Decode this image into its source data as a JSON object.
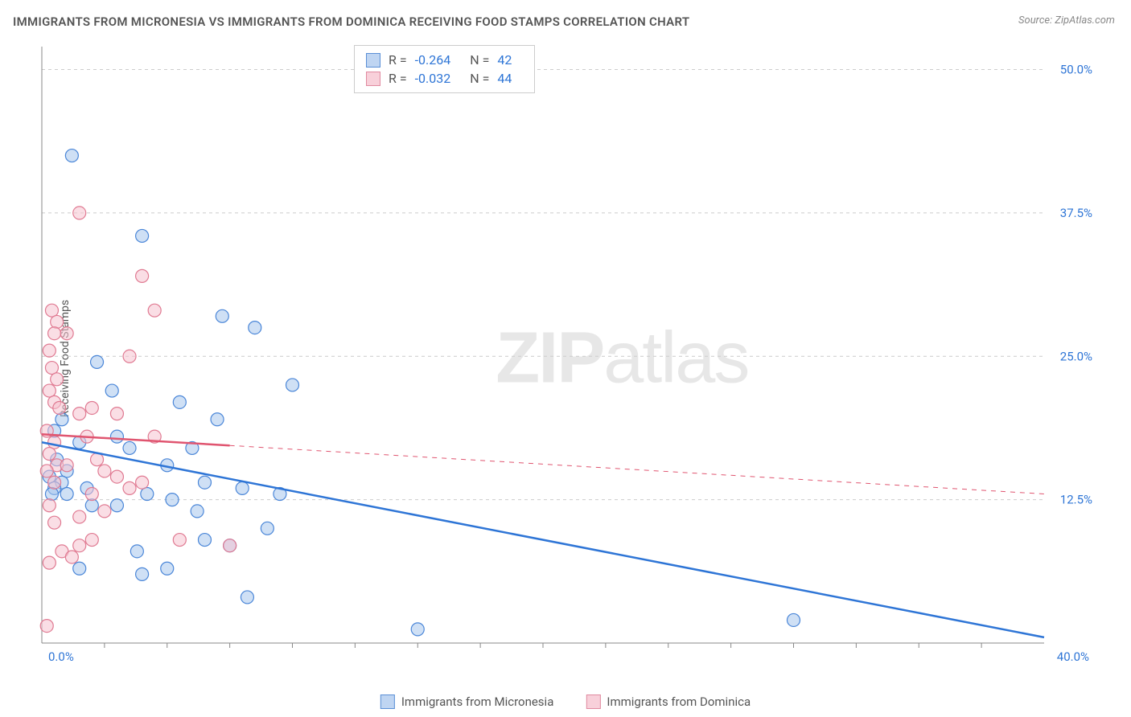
{
  "title": "IMMIGRANTS FROM MICRONESIA VS IMMIGRANTS FROM DOMINICA RECEIVING FOOD STAMPS CORRELATION CHART",
  "source": "Source: ZipAtlas.com",
  "y_axis_label": "Receiving Food Stamps",
  "watermark_part1": "ZIP",
  "watermark_part2": "atlas",
  "chart": {
    "type": "scatter",
    "background_color": "#ffffff",
    "grid_color": "#cccccc",
    "axis_color": "#888888",
    "x_range": [
      0,
      40
    ],
    "y_range": [
      0,
      52
    ],
    "x_ticks": [
      0,
      40
    ],
    "x_tick_labels": [
      "0.0%",
      "40.0%"
    ],
    "x_minor_ticks": [
      2.5,
      5,
      7.5,
      10,
      12.5,
      15,
      17.5,
      20,
      22.5,
      25,
      27.5,
      30,
      32.5,
      35,
      37.5
    ],
    "y_ticks": [
      12.5,
      25,
      37.5,
      50
    ],
    "y_tick_labels": [
      "12.5%",
      "25.0%",
      "37.5%",
      "50.0%"
    ],
    "y_tick_color": "#2e75d6",
    "marker_radius": 8,
    "marker_stroke_width": 1.2,
    "trend_line_width": 2.5,
    "series": [
      {
        "name": "Immigrants from Micronesia",
        "fill": "#a8c6ec",
        "stroke": "#4a86d8",
        "swatch_fill": "#bfd5f2",
        "swatch_stroke": "#5a8fd6",
        "R": "-0.264",
        "N": "42",
        "trend": {
          "x1": 0,
          "y1": 17.5,
          "x2": 40,
          "y2": 0.5,
          "dash": "none",
          "color": "#2e75d6"
        },
        "points": [
          [
            1.2,
            42.5
          ],
          [
            4.0,
            35.5
          ],
          [
            0.3,
            14.5
          ],
          [
            0.6,
            16.0
          ],
          [
            1.0,
            15.0
          ],
          [
            0.8,
            14.0
          ],
          [
            2.2,
            24.5
          ],
          [
            2.8,
            22.0
          ],
          [
            1.5,
            17.5
          ],
          [
            0.5,
            13.5
          ],
          [
            3.0,
            18.0
          ],
          [
            3.5,
            17.0
          ],
          [
            4.2,
            13.0
          ],
          [
            5.0,
            15.5
          ],
          [
            5.5,
            21.0
          ],
          [
            6.0,
            17.0
          ],
          [
            6.5,
            14.0
          ],
          [
            7.0,
            19.5
          ],
          [
            7.2,
            28.5
          ],
          [
            8.0,
            13.5
          ],
          [
            8.5,
            27.5
          ],
          [
            2.0,
            12.0
          ],
          [
            0.4,
            13.0
          ],
          [
            1.8,
            13.5
          ],
          [
            9.0,
            10.0
          ],
          [
            8.2,
            4.0
          ],
          [
            6.2,
            11.5
          ],
          [
            5.0,
            6.5
          ],
          [
            7.5,
            8.5
          ],
          [
            4.0,
            6.0
          ],
          [
            3.8,
            8.0
          ],
          [
            6.5,
            9.0
          ],
          [
            5.2,
            12.5
          ],
          [
            10.0,
            22.5
          ],
          [
            9.5,
            13.0
          ],
          [
            3.0,
            12.0
          ],
          [
            1.5,
            6.5
          ],
          [
            15.0,
            1.2
          ],
          [
            30.0,
            2.0
          ],
          [
            0.5,
            18.5
          ],
          [
            0.8,
            19.5
          ],
          [
            1.0,
            13.0
          ]
        ]
      },
      {
        "name": "Immigrants from Dominica",
        "fill": "#f5c3cf",
        "stroke": "#e07a92",
        "swatch_fill": "#f8d0da",
        "swatch_stroke": "#e08aa0",
        "R": "-0.032",
        "N": "44",
        "trend": {
          "x1": 0,
          "y1": 18.2,
          "x2": 40,
          "y2": 13.0,
          "dash": "solid_then_dash",
          "solid_end_x": 7.5,
          "color": "#e05570"
        },
        "points": [
          [
            1.5,
            37.5
          ],
          [
            0.4,
            29.0
          ],
          [
            0.6,
            28.0
          ],
          [
            0.5,
            27.0
          ],
          [
            4.0,
            32.0
          ],
          [
            0.3,
            25.5
          ],
          [
            0.4,
            24.0
          ],
          [
            0.6,
            23.0
          ],
          [
            0.3,
            22.0
          ],
          [
            0.5,
            21.0
          ],
          [
            1.5,
            20.0
          ],
          [
            2.0,
            20.5
          ],
          [
            0.2,
            18.5
          ],
          [
            0.5,
            17.5
          ],
          [
            4.5,
            29.0
          ],
          [
            3.5,
            25.0
          ],
          [
            0.3,
            16.5
          ],
          [
            0.6,
            15.5
          ],
          [
            1.8,
            18.0
          ],
          [
            2.2,
            16.0
          ],
          [
            0.2,
            15.0
          ],
          [
            0.5,
            14.0
          ],
          [
            1.0,
            15.5
          ],
          [
            2.5,
            15.0
          ],
          [
            3.0,
            14.5
          ],
          [
            4.5,
            18.0
          ],
          [
            4.0,
            14.0
          ],
          [
            2.0,
            13.0
          ],
          [
            0.3,
            12.0
          ],
          [
            1.5,
            11.0
          ],
          [
            3.5,
            13.5
          ],
          [
            0.5,
            10.5
          ],
          [
            2.5,
            11.5
          ],
          [
            0.8,
            8.0
          ],
          [
            1.2,
            7.5
          ],
          [
            0.3,
            7.0
          ],
          [
            2.0,
            9.0
          ],
          [
            1.5,
            8.5
          ],
          [
            5.5,
            9.0
          ],
          [
            7.5,
            8.5
          ],
          [
            0.2,
            1.5
          ],
          [
            3.0,
            20.0
          ],
          [
            1.0,
            27.0
          ],
          [
            0.7,
            20.5
          ]
        ]
      }
    ]
  },
  "legend": {
    "items": [
      {
        "label": "Immigrants from Micronesia",
        "fill": "#bfd5f2",
        "stroke": "#5a8fd6"
      },
      {
        "label": "Immigrants from Dominica",
        "fill": "#f8d0da",
        "stroke": "#e08aa0"
      }
    ]
  },
  "stats_box": {
    "R_label": "R =",
    "N_label": "N ="
  }
}
